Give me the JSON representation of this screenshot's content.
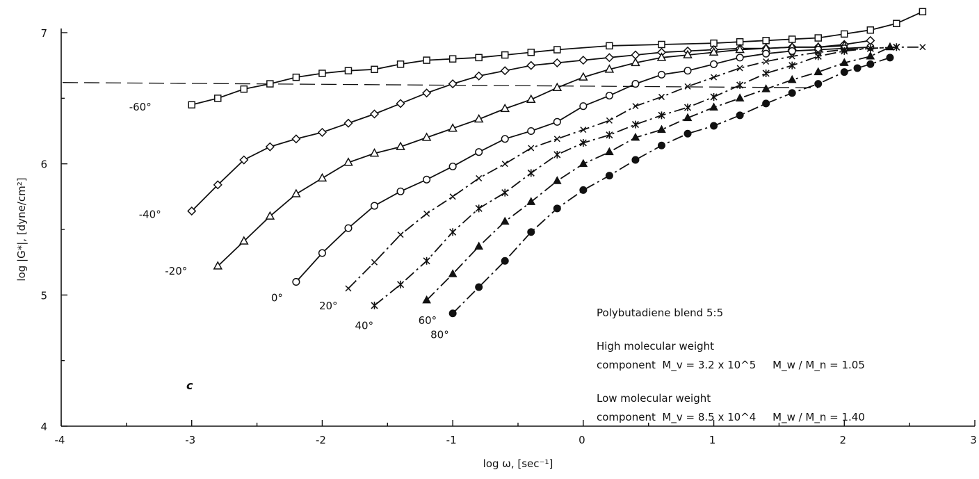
{
  "chart_data": {
    "type": "scatter",
    "xlabel": "log ω, [sec⁻¹]",
    "ylabel": "log |G*|, [dyne/cm²]",
    "xlim": [
      -4,
      3
    ],
    "ylim": [
      4,
      7.2
    ],
    "xticks": [
      "-4",
      "-3",
      "-2",
      "-1",
      "0",
      "1",
      "2",
      "3"
    ],
    "yticks": [
      "4",
      "5",
      "6",
      "7"
    ],
    "grid": false,
    "panel_letter": "c",
    "legend": {
      "placement": "right",
      "lines": [
        "Polybutadiene blend 5:5",
        "High molecular weight",
        "component  M_v = 3.2 x 10^5     M_w / M_n = 1.05",
        "Low molecular weight",
        "component  M_v = 8.5 x 10^4     M_w / M_n = 1.40"
      ]
    },
    "reference_line": {
      "style": "dashed",
      "from": [
        -4,
        6.62
      ],
      "to": [
        1.8,
        6.58
      ]
    },
    "series": [
      {
        "label": "-60°",
        "marker": "open-square",
        "line": "solid",
        "x": [
          -3.0,
          -2.8,
          -2.6,
          -2.4,
          -2.2,
          -2.0,
          -1.8,
          -1.6,
          -1.4,
          -1.2,
          -1.0,
          -0.8,
          -0.6,
          -0.4,
          -0.2,
          0.2,
          0.6,
          1.0,
          1.2,
          1.4,
          1.6,
          1.8,
          2.0,
          2.2,
          2.4,
          2.6
        ],
        "y": [
          6.45,
          6.5,
          6.57,
          6.61,
          6.66,
          6.69,
          6.71,
          6.72,
          6.76,
          6.79,
          6.8,
          6.81,
          6.83,
          6.85,
          6.87,
          6.9,
          6.91,
          6.92,
          6.93,
          6.94,
          6.95,
          6.96,
          6.99,
          7.02,
          7.07,
          7.16
        ]
      },
      {
        "label": "-40°",
        "marker": "open-diamond",
        "line": "solid",
        "x": [
          -3.0,
          -2.8,
          -2.6,
          -2.4,
          -2.2,
          -2.0,
          -1.8,
          -1.6,
          -1.4,
          -1.2,
          -1.0,
          -0.8,
          -0.6,
          -0.4,
          -0.2,
          0.0,
          0.2,
          0.4,
          0.6,
          0.8,
          1.0,
          1.2,
          1.4,
          1.6,
          1.8,
          2.0,
          2.2
        ],
        "y": [
          5.64,
          5.84,
          6.03,
          6.13,
          6.19,
          6.24,
          6.31,
          6.38,
          6.46,
          6.54,
          6.61,
          6.67,
          6.71,
          6.75,
          6.77,
          6.79,
          6.81,
          6.83,
          6.85,
          6.86,
          6.87,
          6.88,
          6.88,
          6.89,
          6.89,
          6.91,
          6.94
        ]
      },
      {
        "label": "-20°",
        "marker": "open-triangle",
        "line": "solid",
        "x": [
          -2.8,
          -2.6,
          -2.4,
          -2.2,
          -2.0,
          -1.8,
          -1.6,
          -1.4,
          -1.2,
          -1.0,
          -0.8,
          -0.6,
          -0.4,
          -0.2,
          0.0,
          0.2,
          0.4,
          0.6,
          0.8,
          1.0,
          1.2,
          1.4,
          1.6,
          1.8,
          2.0
        ],
        "y": [
          5.22,
          5.41,
          5.6,
          5.77,
          5.89,
          6.01,
          6.08,
          6.13,
          6.2,
          6.27,
          6.34,
          6.42,
          6.49,
          6.58,
          6.66,
          6.72,
          6.77,
          6.81,
          6.83,
          6.85,
          6.87,
          6.88,
          6.89,
          6.89,
          6.9
        ]
      },
      {
        "label": "0°",
        "marker": "open-circle",
        "line": "solid",
        "x": [
          -2.2,
          -2.0,
          -1.8,
          -1.6,
          -1.4,
          -1.2,
          -1.0,
          -0.8,
          -0.6,
          -0.4,
          -0.2,
          0.0,
          0.2,
          0.4,
          0.6,
          0.8,
          1.0,
          1.2,
          1.4,
          1.6,
          1.8,
          2.0,
          2.2
        ],
        "y": [
          5.1,
          5.32,
          5.51,
          5.68,
          5.79,
          5.88,
          5.98,
          6.09,
          6.19,
          6.25,
          6.32,
          6.44,
          6.52,
          6.61,
          6.68,
          6.71,
          6.76,
          6.81,
          6.84,
          6.86,
          6.87,
          6.88,
          6.89
        ]
      },
      {
        "label": "20°",
        "marker": "cross",
        "line": "dash-dot",
        "x": [
          -1.8,
          -1.6,
          -1.4,
          -1.2,
          -1.0,
          -0.8,
          -0.6,
          -0.4,
          -0.2,
          0.0,
          0.2,
          0.4,
          0.6,
          0.8,
          1.0,
          1.2,
          1.4,
          1.6,
          1.8,
          2.0,
          2.2,
          2.4,
          2.6
        ],
        "y": [
          5.05,
          5.25,
          5.46,
          5.62,
          5.75,
          5.89,
          6.0,
          6.12,
          6.19,
          6.26,
          6.33,
          6.44,
          6.51,
          6.59,
          6.66,
          6.73,
          6.78,
          6.82,
          6.85,
          6.87,
          6.88,
          6.89,
          6.89
        ]
      },
      {
        "label": "40°",
        "marker": "asterisk",
        "line": "dash-dot",
        "x": [
          -1.6,
          -1.4,
          -1.2,
          -1.0,
          -0.8,
          -0.6,
          -0.4,
          -0.2,
          0.0,
          0.2,
          0.4,
          0.6,
          0.8,
          1.0,
          1.2,
          1.4,
          1.6,
          1.8,
          2.0,
          2.2,
          2.4
        ],
        "y": [
          4.92,
          5.08,
          5.26,
          5.48,
          5.66,
          5.78,
          5.93,
          6.07,
          6.16,
          6.22,
          6.3,
          6.37,
          6.43,
          6.51,
          6.6,
          6.69,
          6.75,
          6.82,
          6.86,
          6.88,
          6.89
        ]
      },
      {
        "label": "60°",
        "marker": "filled-triangle",
        "line": "dash-dot",
        "x": [
          -1.2,
          -1.0,
          -0.8,
          -0.6,
          -0.4,
          -0.2,
          0.0,
          0.2,
          0.4,
          0.6,
          0.8,
          1.0,
          1.2,
          1.4,
          1.6,
          1.8,
          2.0,
          2.2,
          2.35
        ],
        "y": [
          4.96,
          5.16,
          5.37,
          5.56,
          5.71,
          5.87,
          6.0,
          6.09,
          6.2,
          6.26,
          6.35,
          6.43,
          6.5,
          6.57,
          6.64,
          6.7,
          6.77,
          6.82,
          6.89
        ]
      },
      {
        "label": "80°",
        "marker": "filled-circle",
        "line": "dash-dot",
        "x": [
          -1.0,
          -0.8,
          -0.6,
          -0.4,
          -0.2,
          0.0,
          0.2,
          0.4,
          0.6,
          0.8,
          1.0,
          1.2,
          1.4,
          1.6,
          1.8,
          2.0,
          2.1,
          2.2,
          2.35
        ],
        "y": [
          4.86,
          5.06,
          5.26,
          5.48,
          5.66,
          5.8,
          5.91,
          6.03,
          6.14,
          6.23,
          6.29,
          6.37,
          6.46,
          6.54,
          6.61,
          6.7,
          6.73,
          6.76,
          6.81
        ]
      }
    ]
  }
}
